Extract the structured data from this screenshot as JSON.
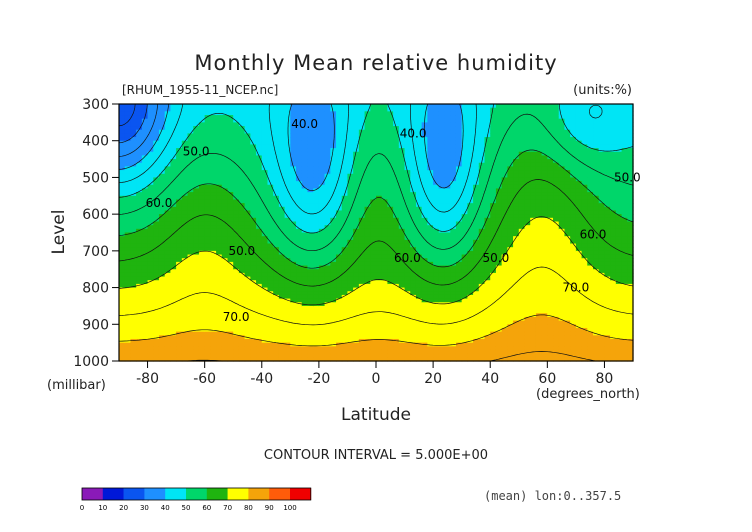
{
  "chart_data": {
    "type": "heatmap",
    "subtype": "filled-contour",
    "title": "Monthly Mean relative humidity",
    "file_label": "[RHUM_1955-11_NCEP.nc]",
    "units_label": "(units:%)",
    "xlabel": "Latitude",
    "ylabel": "Level",
    "x_unit_label": "(degrees_north)",
    "y_unit_label": "(millibar)",
    "x_ticks": [
      -80,
      -60,
      -40,
      -20,
      0,
      20,
      40,
      60,
      80
    ],
    "y_ticks": [
      300,
      400,
      500,
      600,
      700,
      800,
      900,
      1000
    ],
    "xlim": [
      -90,
      90
    ],
    "ylim": [
      1000,
      300
    ],
    "contour_interval_text": "CONTOUR INTERVAL = 5.000E+00",
    "footer_note": "(mean) lon:0..357.5",
    "contour_labels": [
      {
        "text": "40.0",
        "lat": -25,
        "level": 355
      },
      {
        "text": "40.0",
        "lat": 13,
        "level": 380
      },
      {
        "text": "50.0",
        "lat": -63,
        "level": 430
      },
      {
        "text": "60.0",
        "lat": -76,
        "level": 570
      },
      {
        "text": "50.0",
        "lat": -47,
        "level": 700
      },
      {
        "text": "60.0",
        "lat": 11,
        "level": 720
      },
      {
        "text": "50.0",
        "lat": 42,
        "level": 720
      },
      {
        "text": "60.0",
        "lat": 76,
        "level": 655
      },
      {
        "text": "70.0",
        "lat": 70,
        "level": 800
      },
      {
        "text": "70.0",
        "lat": -49,
        "level": 880
      },
      {
        "text": "50.0",
        "lat": 88,
        "level": 500
      }
    ],
    "colorbar": {
      "ticks": [
        "0",
        "10",
        "20",
        "30",
        "40",
        "50",
        "60",
        "70",
        "80",
        "90",
        "100"
      ],
      "colors": [
        "#8a1ab8",
        "#0018d8",
        "#0a55f0",
        "#1e90ff",
        "#00e5f5",
        "#00d66a",
        "#1fb40f",
        "#ffff00",
        "#f5a40a",
        "#ff5c0a",
        "#f00000"
      ]
    }
  }
}
